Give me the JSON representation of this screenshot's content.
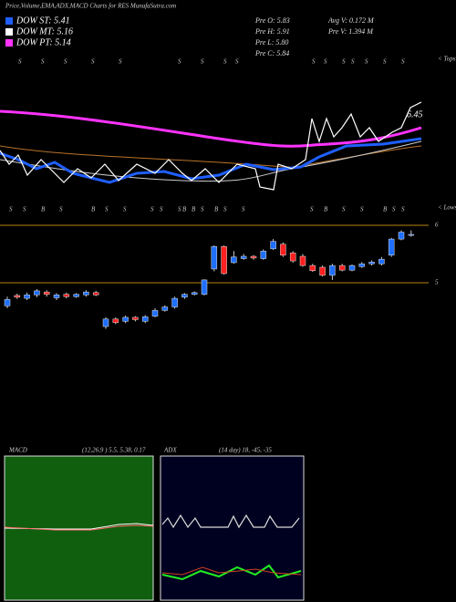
{
  "header": {
    "title": "Price,Volume,EMA,ADX,MACD Charts for RES MunafaSutra.com"
  },
  "legend": [
    {
      "label": "DOW ST: 5.41",
      "color": "#1f5fff"
    },
    {
      "label": "DOW MT: 5.16",
      "color": "#ffffff"
    },
    {
      "label": "DOW PT: 5.14",
      "color": "#ff33ff"
    }
  ],
  "stats": [
    "Pre O: 5.83",
    "Pre H: 5.91",
    "Pre L: 5.80",
    "Pre C: 5.84",
    "Avg V: 0.172 M",
    "Pre V: 1.394 M"
  ],
  "top_panel": {
    "price_label": "6.45",
    "tops_label": "< Tops",
    "lows_label": "< Lows",
    "top_signals": [
      "S",
      "S",
      "S",
      "S",
      "S",
      "S",
      "S",
      "S",
      "S",
      "S",
      "S",
      "S",
      "S",
      "S",
      "S",
      "S"
    ],
    "bottom_signals": [
      "S",
      "S",
      "B",
      "S",
      "B",
      "S",
      "S",
      "S",
      "S",
      "S",
      "B",
      "B",
      "S",
      "B",
      "S",
      "S",
      "S",
      "B",
      "S",
      "S",
      "B",
      "S",
      "S"
    ]
  },
  "chart_data": {
    "type": "candlestick",
    "up_color": "#1f6fff",
    "down_color": "#ff2020",
    "level_color": "#b8860b",
    "ylim": [
      4.05,
      6.11
    ],
    "yticks": [
      5,
      6
    ],
    "open": [
      4.6,
      4.78,
      4.73,
      4.79,
      4.84,
      4.74,
      4.8,
      4.76,
      4.79,
      4.83,
      4.24,
      4.37,
      4.33,
      4.4,
      4.33,
      4.42,
      4.52,
      4.58,
      4.75,
      4.8,
      4.8,
      5.24,
      5.63,
      5.35,
      5.42,
      5.46,
      5.42,
      5.59,
      5.67,
      5.52,
      5.46,
      5.3,
      5.27,
      5.13,
      5.3,
      5.22,
      5.28,
      5.33,
      5.33,
      5.48,
      5.76,
      5.83
    ],
    "high": [
      4.76,
      4.81,
      4.83,
      4.89,
      4.87,
      4.82,
      4.83,
      4.82,
      4.87,
      4.86,
      4.4,
      4.4,
      4.43,
      4.42,
      4.44,
      4.56,
      4.61,
      4.76,
      4.82,
      4.85,
      5.06,
      5.65,
      5.65,
      5.55,
      5.5,
      5.48,
      5.58,
      5.76,
      5.7,
      5.55,
      5.5,
      5.33,
      5.3,
      5.33,
      5.33,
      5.32,
      5.36,
      5.39,
      5.45,
      5.78,
      5.91,
      5.91
    ],
    "low": [
      4.56,
      4.72,
      4.7,
      4.75,
      4.76,
      4.7,
      4.73,
      4.74,
      4.76,
      4.77,
      4.2,
      4.28,
      4.3,
      4.33,
      4.3,
      4.4,
      4.5,
      4.55,
      4.72,
      4.78,
      4.78,
      5.2,
      5.14,
      5.33,
      5.4,
      5.4,
      5.4,
      5.57,
      5.45,
      5.35,
      5.28,
      5.19,
      5.11,
      5.05,
      5.2,
      5.2,
      5.26,
      5.3,
      5.3,
      5.45,
      5.74,
      5.8
    ],
    "close": [
      4.71,
      4.75,
      4.79,
      4.86,
      4.8,
      4.79,
      4.76,
      4.8,
      4.84,
      4.79,
      4.37,
      4.31,
      4.4,
      4.36,
      4.41,
      4.52,
      4.58,
      4.73,
      4.8,
      4.83,
      5.05,
      5.63,
      5.16,
      5.45,
      5.46,
      5.43,
      5.55,
      5.72,
      5.48,
      5.38,
      5.3,
      5.21,
      5.13,
      5.3,
      5.22,
      5.3,
      5.33,
      5.36,
      5.41,
      5.76,
      5.88,
      5.84
    ]
  },
  "macd": {
    "label": "MACD",
    "params": "(12,26,9 ) 5.5, 5.38, 0.17"
  },
  "adx": {
    "label": "ADX",
    "params": "(14 day) 18, -45, -35"
  }
}
